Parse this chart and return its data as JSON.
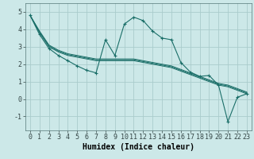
{
  "xlabel": "Humidex (Indice chaleur)",
  "background_color": "#cce8e8",
  "grid_color": "#aacccc",
  "line_color": "#1a6e68",
  "xlim": [
    -0.5,
    23.5
  ],
  "ylim": [
    -1.8,
    5.5
  ],
  "xticks": [
    0,
    1,
    2,
    3,
    4,
    5,
    6,
    7,
    8,
    9,
    10,
    11,
    12,
    13,
    14,
    15,
    16,
    17,
    18,
    19,
    20,
    21,
    22,
    23
  ],
  "yticks": [
    -1,
    0,
    1,
    2,
    3,
    4,
    5
  ],
  "main_series_x": [
    0,
    1,
    2,
    3,
    4,
    5,
    6,
    7,
    8,
    9,
    10,
    11,
    12,
    13,
    14,
    15,
    16,
    17,
    18,
    19,
    20,
    21,
    22,
    23
  ],
  "main_series_y": [
    4.8,
    3.7,
    2.9,
    2.5,
    2.2,
    1.9,
    1.65,
    1.5,
    3.4,
    2.5,
    4.3,
    4.7,
    4.5,
    3.9,
    3.5,
    3.4,
    2.1,
    1.55,
    1.3,
    1.35,
    0.8,
    -1.3,
    0.1,
    0.3
  ],
  "trend_lines": [
    [
      4.8,
      3.9,
      3.1,
      2.8,
      2.6,
      2.5,
      2.4,
      2.3,
      2.3,
      2.3,
      2.3,
      2.3,
      2.2,
      2.1,
      2.0,
      1.9,
      1.7,
      1.5,
      1.3,
      1.1,
      0.9,
      0.8,
      0.6,
      0.4
    ],
    [
      4.8,
      3.85,
      3.05,
      2.75,
      2.55,
      2.45,
      2.35,
      2.25,
      2.25,
      2.25,
      2.25,
      2.25,
      2.15,
      2.05,
      1.95,
      1.85,
      1.65,
      1.45,
      1.25,
      1.05,
      0.85,
      0.75,
      0.55,
      0.35
    ],
    [
      4.8,
      3.8,
      3.0,
      2.7,
      2.5,
      2.4,
      2.3,
      2.2,
      2.2,
      2.2,
      2.2,
      2.2,
      2.1,
      2.0,
      1.9,
      1.8,
      1.6,
      1.4,
      1.2,
      1.0,
      0.8,
      0.7,
      0.5,
      0.3
    ]
  ],
  "font_size_label": 7,
  "font_size_tick": 6,
  "font_size_xlabel": 7
}
